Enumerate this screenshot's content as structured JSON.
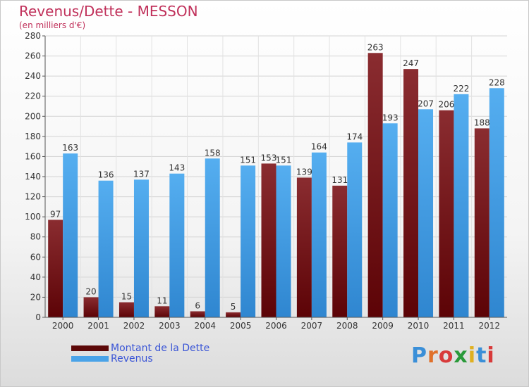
{
  "header": {
    "title": "Revenus/Dette - MESSON",
    "subtitle": "(en milliers d'€)"
  },
  "chart_data": {
    "type": "bar",
    "title": "Revenus/Dette - MESSON",
    "ylabel": "(en milliers d'€)",
    "xlabel": "",
    "categories": [
      "2000",
      "2001",
      "2002",
      "2003",
      "2004",
      "2005",
      "2006",
      "2007",
      "2008",
      "2009",
      "2010",
      "2011",
      "2012"
    ],
    "series": [
      {
        "name": "Montant de la Dette",
        "values": [
          97,
          20,
          15,
          11,
          6,
          5,
          153,
          139,
          131,
          263,
          247,
          206,
          188
        ],
        "color": "#7a1a1d"
      },
      {
        "name": "Revenus",
        "values": [
          163,
          136,
          137,
          143,
          158,
          151,
          151,
          164,
          174,
          193,
          207,
          222,
          228
        ],
        "color": "#4aa3e8"
      }
    ],
    "ylim": [
      0,
      280
    ],
    "yticks": [
      0,
      20,
      40,
      60,
      80,
      100,
      120,
      140,
      160,
      180,
      200,
      220,
      240,
      260,
      280
    ],
    "grid": true,
    "legend": "bottom-left"
  },
  "legend": {
    "items": [
      {
        "label": "Montant de la Dette",
        "color": "#5c0808"
      },
      {
        "label": "Revenus",
        "color": "#4aa3e8"
      }
    ]
  },
  "logo": {
    "letters": [
      "P",
      "r",
      "o",
      "x",
      "i",
      "t",
      "i"
    ],
    "colors": [
      "#3a8fd8",
      "#e0702a",
      "#d83a3a",
      "#2a9a3a",
      "#e0b020",
      "#3a8fd8",
      "#d83a3a"
    ]
  }
}
